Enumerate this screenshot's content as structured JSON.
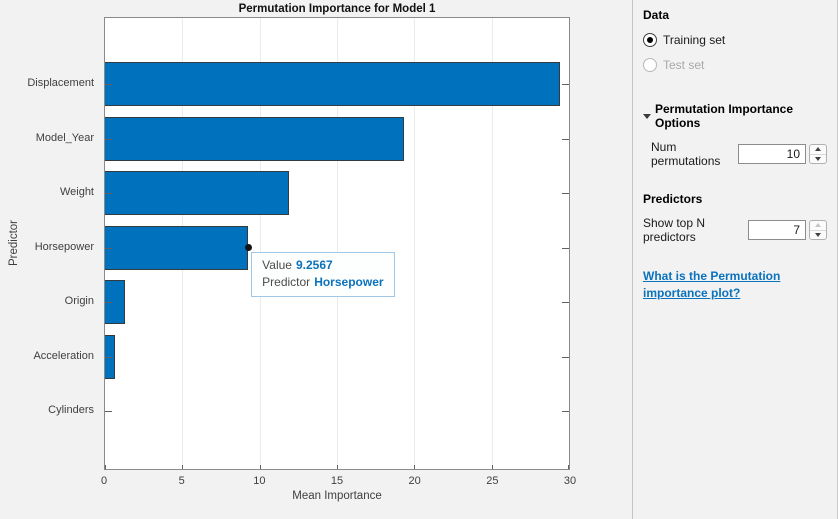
{
  "chart_data": {
    "type": "bar",
    "orientation": "horizontal",
    "title": "Permutation Importance for Model 1",
    "xlabel": "Mean Importance",
    "ylabel": "Predictor",
    "categories": [
      "Displacement",
      "Model_Year",
      "Weight",
      "Horsepower",
      "Origin",
      "Acceleration",
      "Cylinders"
    ],
    "values": [
      29.45,
      19.3,
      11.9,
      9.2567,
      1.3,
      0.65,
      0
    ],
    "xlim": [
      0,
      30
    ],
    "xticks": [
      0,
      5,
      10,
      15,
      20,
      25,
      30
    ],
    "grid": true,
    "legend": false,
    "bar_color": "#0072BD"
  },
  "tooltip": {
    "value_label": "Value",
    "value": "9.2567",
    "predictor_label": "Predictor",
    "predictor": "Horsepower",
    "target_category": "Horsepower"
  },
  "sidebar": {
    "data_section": {
      "title": "Data",
      "training_option": {
        "label": "Training set",
        "selected": true,
        "enabled": true
      },
      "test_option": {
        "label": "Test set",
        "selected": false,
        "enabled": false
      }
    },
    "perm_options": {
      "title": "Permutation Importance Options",
      "num_permutations_label": "Num permutations",
      "num_permutations_value": "10"
    },
    "predictors_section": {
      "title": "Predictors",
      "show_top_label": "Show top N predictors",
      "show_top_value": "7"
    },
    "help_link_text": "What is the Permutation importance plot?"
  },
  "colors": {
    "bar_fill": "#0072BD",
    "link_blue": "#0b72bd",
    "tooltip_value_blue": "#0b72bd",
    "tooltip_border": "#9ec7e8",
    "plot_background": "#ffffff",
    "panel_background": "#f2f2f2"
  }
}
